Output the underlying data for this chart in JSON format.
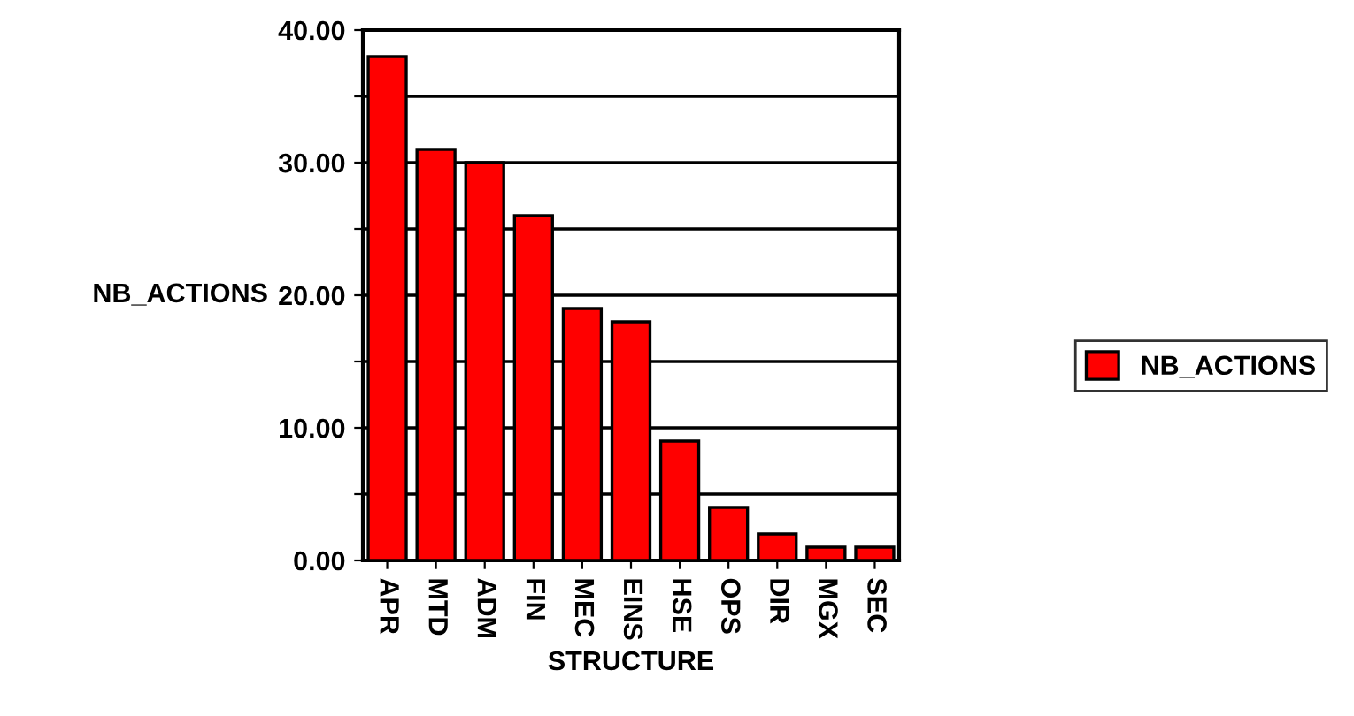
{
  "chart_data": {
    "type": "bar",
    "xlabel": "STRUCTURE",
    "ylabel": "NB_ACTIONS",
    "categories": [
      "APR",
      "MTD",
      "ADM",
      "FIN",
      "MEC",
      "EINS",
      "HSE",
      "OPS",
      "DIR",
      "MGX",
      "SEC"
    ],
    "series": [
      {
        "name": "NB_ACTIONS",
        "color": "#ff0000",
        "values": [
          38,
          31,
          30,
          26,
          19,
          18,
          9,
          4,
          2,
          1,
          1
        ]
      }
    ],
    "ylim": [
      0,
      40
    ],
    "yticks": [
      {
        "value": 0,
        "label": "0.00"
      },
      {
        "value": 5,
        "label": null
      },
      {
        "value": 10,
        "label": "10.00"
      },
      {
        "value": 15,
        "label": null
      },
      {
        "value": 20,
        "label": "20.00"
      },
      {
        "value": 25,
        "label": null
      },
      {
        "value": 30,
        "label": "30.00"
      },
      {
        "value": 35,
        "label": null
      },
      {
        "value": 40,
        "label": "40.00"
      }
    ],
    "grid": "y",
    "legend": "right"
  }
}
